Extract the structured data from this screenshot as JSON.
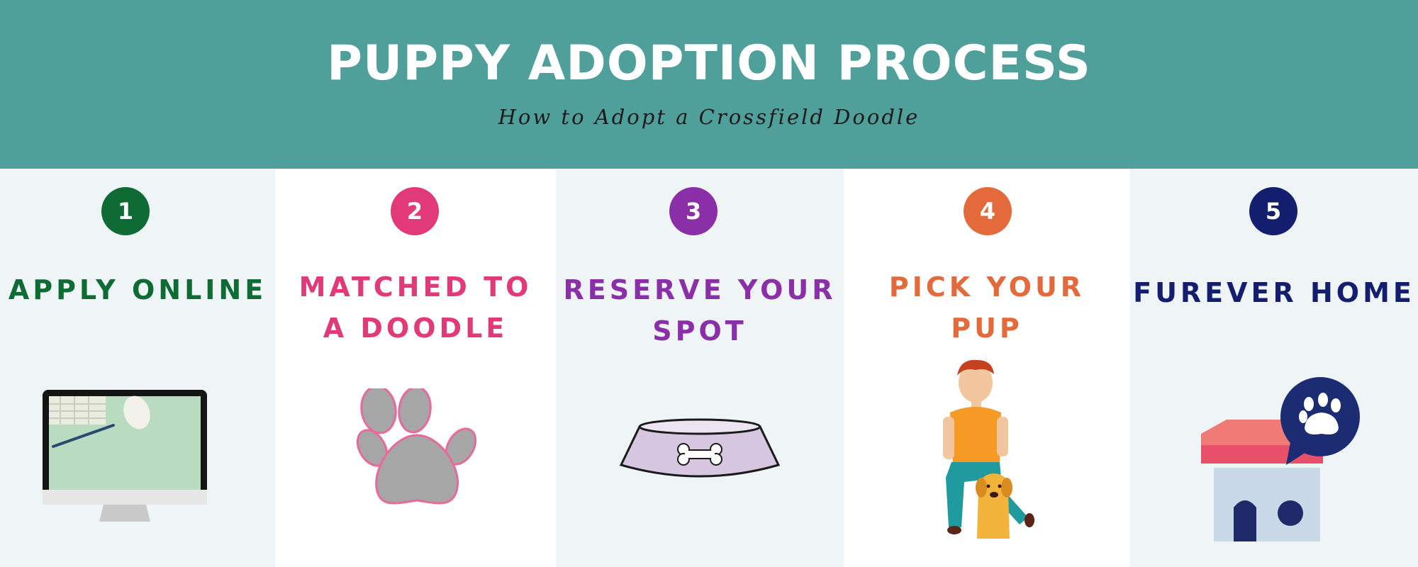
{
  "header": {
    "title": "PUPPY ADOPTION PROCESS",
    "subtitle": "How to Adopt a Crossfield Doodle",
    "background_color": "#4f9f9a"
  },
  "steps": [
    {
      "number": "1",
      "title_lines": [
        "APPLY ONLINE"
      ],
      "color": "#0e6b34",
      "icon": "computer-monitor-icon"
    },
    {
      "number": "2",
      "title_lines": [
        "MATCHED TO",
        "A DOODLE"
      ],
      "color": "#e23a78",
      "icon": "paw-print-icon"
    },
    {
      "number": "3",
      "title_lines": [
        "RESERVE YOUR",
        "SPOT"
      ],
      "color": "#8a2fa8",
      "icon": "dog-bowl-icon"
    },
    {
      "number": "4",
      "title_lines": [
        "PICK YOUR",
        "PUP"
      ],
      "color": "#e46a3c",
      "icon": "boy-with-puppy-icon"
    },
    {
      "number": "5",
      "title_lines": [
        "FUREVER HOME"
      ],
      "color": "#141e6e",
      "icon": "dog-house-icon"
    }
  ]
}
